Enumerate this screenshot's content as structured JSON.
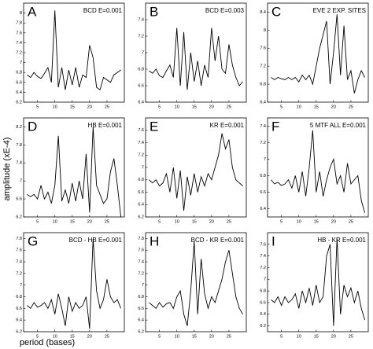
{
  "xlabel": "period (bases)",
  "ylabel": "amplitude (xE-4)",
  "chart_data": [
    {
      "type": "line",
      "panel": "A",
      "title": "BCD E=0.001",
      "x": [
        2,
        3,
        4,
        5,
        6,
        7,
        8,
        9,
        10,
        11,
        12,
        13,
        14,
        15,
        16,
        17,
        18,
        19,
        20,
        21,
        22,
        23,
        24,
        25,
        26,
        27,
        28,
        29
      ],
      "xlim": [
        1,
        30
      ],
      "xticks": [
        5,
        10,
        15,
        20,
        25
      ],
      "ylim": [
        6.2,
        8.2
      ],
      "yticks": [
        6.2,
        6.4,
        6.6,
        6.8,
        7,
        7.2,
        7.4,
        7.6,
        7.8,
        8
      ],
      "series": [
        {
          "color": "#000000",
          "values": [
            6.75,
            6.7,
            6.8,
            6.72,
            6.68,
            6.78,
            6.9,
            6.6,
            8.05,
            6.5,
            6.9,
            6.45,
            6.85,
            6.55,
            6.9,
            6.5,
            6.75,
            6.7,
            7.35,
            7.1,
            6.5,
            6.45,
            6.7,
            6.65,
            6.6,
            6.75,
            6.8,
            6.85
          ]
        }
      ]
    },
    {
      "type": "line",
      "panel": "B",
      "title": "BCD E=0.003",
      "x": [
        2,
        3,
        4,
        5,
        6,
        7,
        8,
        9,
        10,
        11,
        12,
        13,
        14,
        15,
        16,
        17,
        18,
        19,
        20,
        21,
        22,
        23,
        24,
        25,
        26,
        27,
        28,
        29
      ],
      "xlim": [
        1,
        30
      ],
      "xticks": [
        5,
        10,
        15,
        20,
        25
      ],
      "ylim": [
        6.4,
        7.6
      ],
      "yticks": [
        6.4,
        6.6,
        6.8,
        7,
        7.2,
        7.4
      ],
      "series": [
        {
          "color": "#000000",
          "values": [
            6.78,
            6.75,
            6.8,
            6.72,
            6.7,
            6.78,
            6.85,
            6.7,
            7.3,
            6.6,
            7.25,
            6.55,
            7.0,
            6.65,
            6.9,
            6.6,
            6.85,
            6.7,
            7.3,
            6.9,
            7.2,
            6.8,
            6.75,
            7.1,
            6.85,
            6.7,
            6.6,
            6.65
          ]
        }
      ]
    },
    {
      "type": "line",
      "panel": "C",
      "title": "EVE 2 EXP. SITES",
      "x": [
        2,
        3,
        4,
        5,
        6,
        7,
        8,
        9,
        10,
        11,
        12,
        13,
        14,
        15,
        16,
        17,
        18,
        19,
        20,
        21,
        22,
        23,
        24,
        25,
        26,
        27,
        28,
        29
      ],
      "xlim": [
        1,
        30
      ],
      "xticks": [
        5,
        10,
        15,
        20,
        25
      ],
      "ylim": [
        6.4,
        8.6
      ],
      "yticks": [
        6.4,
        6.8,
        7.2,
        7.6,
        8,
        8.4
      ],
      "series": [
        {
          "color": "#000000",
          "values": [
            6.95,
            6.9,
            6.95,
            6.92,
            6.9,
            6.95,
            6.9,
            6.95,
            6.85,
            7.0,
            6.9,
            7.0,
            6.8,
            7.2,
            7.6,
            7.9,
            8.2,
            6.8,
            7.5,
            8.35,
            7.0,
            8.1,
            6.9,
            7.1,
            6.6,
            6.9,
            7.1,
            6.95
          ]
        }
      ]
    },
    {
      "type": "line",
      "panel": "D",
      "title": "HB E=0.001",
      "x": [
        2,
        3,
        4,
        5,
        6,
        7,
        8,
        9,
        10,
        11,
        12,
        13,
        14,
        15,
        16,
        17,
        18,
        19,
        20,
        21,
        22,
        23,
        24,
        25,
        26,
        27,
        28,
        29
      ],
      "xlim": [
        1,
        30
      ],
      "xticks": [
        5,
        10,
        15,
        20,
        25
      ],
      "ylim": [
        6.2,
        8.4
      ],
      "yticks": [
        6.2,
        6.6,
        7,
        7.4,
        7.8,
        8.2
      ],
      "series": [
        {
          "color": "#000000",
          "values": [
            6.7,
            6.65,
            6.7,
            6.6,
            6.9,
            6.6,
            6.75,
            6.5,
            6.9,
            8.0,
            6.55,
            6.8,
            6.5,
            6.95,
            6.55,
            7.0,
            6.6,
            7.6,
            6.3,
            8.2,
            6.9,
            6.7,
            6.5,
            6.6,
            7.2,
            7.5,
            6.9,
            6.2
          ]
        }
      ]
    },
    {
      "type": "line",
      "panel": "E",
      "title": "KR E=0.001",
      "x": [
        2,
        3,
        4,
        5,
        6,
        7,
        8,
        9,
        10,
        11,
        12,
        13,
        14,
        15,
        16,
        17,
        18,
        19,
        20,
        21,
        22,
        23,
        24,
        25,
        26,
        27,
        28,
        29
      ],
      "xlim": [
        1,
        30
      ],
      "xticks": [
        5,
        10,
        15,
        20,
        25
      ],
      "ylim": [
        6.2,
        7.8
      ],
      "yticks": [
        6.2,
        6.4,
        6.6,
        6.8,
        7,
        7.2,
        7.4,
        7.6
      ],
      "series": [
        {
          "color": "#000000",
          "values": [
            6.8,
            6.75,
            6.8,
            6.7,
            6.75,
            6.9,
            6.6,
            7.0,
            6.5,
            6.95,
            6.3,
            6.85,
            6.55,
            6.9,
            6.6,
            6.85,
            6.7,
            6.9,
            6.8,
            7.0,
            7.2,
            7.55,
            7.3,
            7.45,
            7.0,
            6.8,
            6.75,
            6.7
          ]
        }
      ]
    },
    {
      "type": "line",
      "panel": "F",
      "title": "5 MTF ALL E=0.001",
      "x": [
        2,
        3,
        4,
        5,
        6,
        7,
        8,
        9,
        10,
        11,
        12,
        13,
        14,
        15,
        16,
        17,
        18,
        19,
        20,
        21,
        22,
        23,
        24,
        25,
        26,
        27,
        28,
        29
      ],
      "xlim": [
        1,
        30
      ],
      "xticks": [
        5,
        10,
        15,
        20,
        25
      ],
      "ylim": [
        6.3,
        7.5
      ],
      "yticks": [
        6.4,
        6.6,
        6.8,
        7,
        7.2,
        7.4
      ],
      "series": [
        {
          "color": "#000000",
          "values": [
            6.75,
            6.7,
            6.72,
            6.68,
            6.7,
            6.75,
            6.65,
            6.8,
            6.6,
            6.85,
            6.55,
            6.9,
            7.35,
            6.6,
            6.85,
            6.55,
            6.75,
            6.9,
            7.0,
            6.7,
            6.8,
            6.6,
            6.95,
            6.7,
            6.75,
            6.8,
            6.5,
            6.35
          ]
        }
      ]
    },
    {
      "type": "line",
      "panel": "G",
      "title": "BCD - HB E=0.001",
      "x": [
        2,
        3,
        4,
        5,
        6,
        7,
        8,
        9,
        10,
        11,
        12,
        13,
        14,
        15,
        16,
        17,
        18,
        19,
        20,
        21,
        22,
        23,
        24,
        25,
        26,
        27,
        28,
        29
      ],
      "xlim": [
        1,
        30
      ],
      "xticks": [
        5,
        10,
        15,
        20,
        25
      ],
      "ylim": [
        6.2,
        7.9
      ],
      "yticks": [
        6.2,
        6.4,
        6.6,
        6.8,
        7,
        7.2,
        7.4,
        7.6,
        7.8
      ],
      "series": [
        {
          "color": "#000000",
          "values": [
            6.65,
            6.6,
            6.7,
            6.62,
            6.65,
            6.7,
            6.6,
            6.75,
            6.5,
            6.85,
            6.6,
            6.3,
            6.8,
            6.55,
            6.7,
            6.6,
            6.65,
            6.8,
            6.25,
            7.8,
            6.9,
            6.6,
            6.75,
            7.1,
            6.8,
            6.7,
            6.75,
            6.6
          ]
        }
      ]
    },
    {
      "type": "line",
      "panel": "H",
      "title": "BCD - KR E=0.001",
      "x": [
        2,
        3,
        4,
        5,
        6,
        7,
        8,
        9,
        10,
        11,
        12,
        13,
        14,
        15,
        16,
        17,
        18,
        19,
        20,
        21,
        22,
        23,
        24,
        25,
        26,
        27,
        28,
        29
      ],
      "xlim": [
        1,
        30
      ],
      "xticks": [
        5,
        10,
        15,
        20,
        25
      ],
      "ylim": [
        6.2,
        7.9
      ],
      "yticks": [
        6.2,
        6.4,
        6.6,
        6.8,
        7,
        7.2,
        7.4,
        7.6,
        7.8
      ],
      "series": [
        {
          "color": "#000000",
          "values": [
            6.7,
            6.65,
            6.6,
            6.7,
            6.62,
            6.68,
            6.7,
            6.6,
            6.8,
            6.9,
            6.5,
            6.3,
            6.9,
            7.75,
            6.5,
            7.45,
            6.85,
            6.6,
            6.8,
            6.7,
            6.9,
            7.1,
            7.4,
            7.6,
            7.2,
            6.8,
            6.6,
            6.5
          ]
        }
      ]
    },
    {
      "type": "line",
      "panel": "I",
      "title": "HB - KR E=0.001",
      "x": [
        2,
        3,
        4,
        5,
        6,
        7,
        8,
        9,
        10,
        11,
        12,
        13,
        14,
        15,
        16,
        17,
        18,
        19,
        20,
        21,
        22,
        23,
        24,
        25,
        26,
        27,
        28,
        29
      ],
      "xlim": [
        1,
        30
      ],
      "xticks": [
        5,
        10,
        15,
        20,
        25
      ],
      "ylim": [
        6.1,
        7.8
      ],
      "yticks": [
        6.2,
        6.4,
        6.6,
        6.8,
        7,
        7.2,
        7.4,
        7.6
      ],
      "series": [
        {
          "color": "#000000",
          "values": [
            6.65,
            6.6,
            6.7,
            6.55,
            6.7,
            6.6,
            6.65,
            6.75,
            6.5,
            6.8,
            6.6,
            6.85,
            6.55,
            6.9,
            6.6,
            6.7,
            7.4,
            7.6,
            6.2,
            7.7,
            6.4,
            6.9,
            6.7,
            6.85,
            6.6,
            6.8,
            6.5,
            6.3
          ]
        }
      ]
    }
  ]
}
